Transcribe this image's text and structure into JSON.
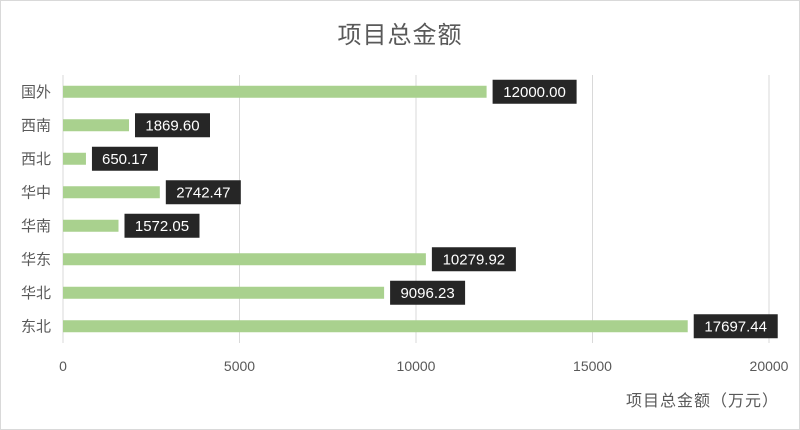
{
  "chart_data": {
    "type": "bar",
    "orientation": "horizontal",
    "title": "项目总金额",
    "xlabel": "项目总金额（万元）",
    "ylabel": "",
    "categories": [
      "国外",
      "西南",
      "西北",
      "华中",
      "华南",
      "华东",
      "华北",
      "东北"
    ],
    "values": [
      12000.0,
      1869.6,
      650.17,
      2742.47,
      1572.05,
      10279.92,
      9096.23,
      17697.44
    ],
    "value_labels": [
      "12000.00",
      "1869.60",
      "650.17",
      "2742.47",
      "1572.05",
      "10279.92",
      "9096.23",
      "17697.44"
    ],
    "xlim": [
      0,
      20000
    ],
    "xticks": [
      0,
      5000,
      10000,
      15000,
      20000
    ],
    "grid": "vertical",
    "legend": "none",
    "colors": {
      "bar": "#a9d18e",
      "label_bg": "#262626",
      "label_text": "#ffffff",
      "grid": "#d9d9d9",
      "text": "#595959"
    }
  }
}
